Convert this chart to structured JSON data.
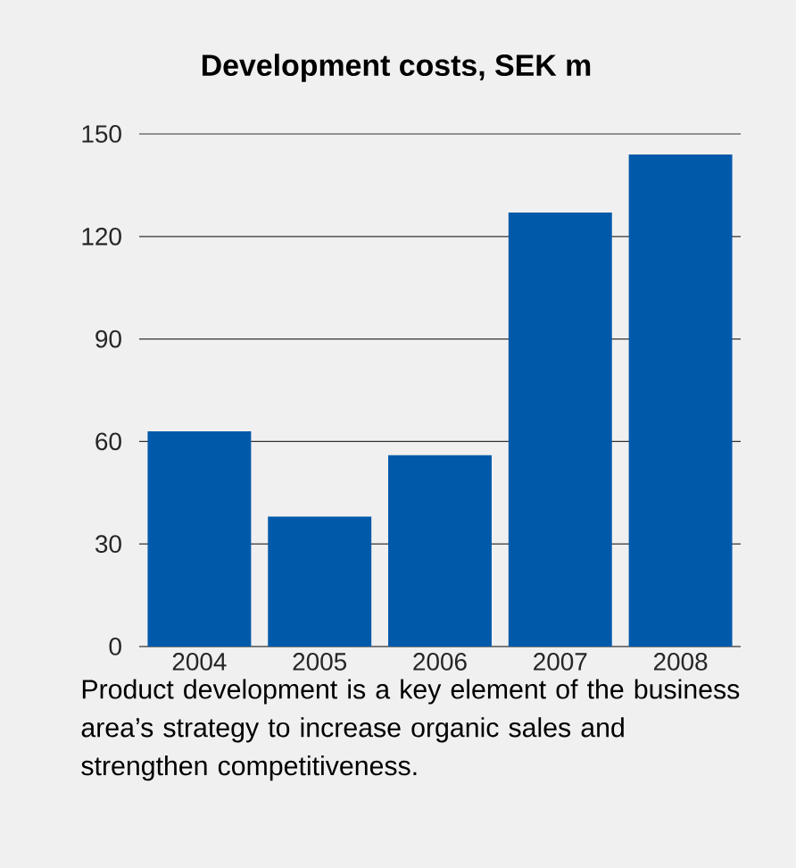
{
  "chart_data": {
    "type": "bar",
    "title": "Development costs, SEK m",
    "categories": [
      "2004",
      "2005",
      "2006",
      "2007",
      "2008"
    ],
    "values": [
      63,
      38,
      56,
      127,
      144
    ],
    "color": "#005aa9",
    "ylim": [
      0,
      150
    ],
    "yticks": [
      0,
      30,
      60,
      90,
      120,
      150
    ],
    "grid": "y",
    "annotations": [
      "Product development is a key element of the business area’s strategy to increase organic sales and strengthen competitiveness."
    ]
  }
}
